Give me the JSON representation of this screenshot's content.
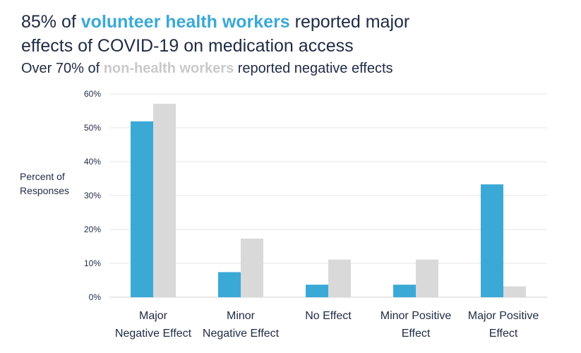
{
  "title": {
    "line1_pre": "85% of ",
    "line1_hl": "volunteer health workers",
    "line1_post": " reported major",
    "line2": "effects of COVID-19 on medication access"
  },
  "subtitle": {
    "pre": "Over 70% of ",
    "hl": "non-health workers",
    "post": " reported negative effects"
  },
  "colors": {
    "health": "#3aa9d6",
    "nonhealth": "#d9d9d9",
    "grid": "#e6e6e6",
    "text": "#1f2a44"
  },
  "chart_data": {
    "type": "bar",
    "ylabel_lines": [
      "Percent of",
      "Responses"
    ],
    "ylim": [
      0,
      60
    ],
    "yticks": [
      0,
      10,
      20,
      30,
      40,
      50,
      60
    ],
    "ytick_labels": [
      "0%",
      "10%",
      "20%",
      "30%",
      "40%",
      "50%",
      "60%"
    ],
    "grid": true,
    "legend": "none",
    "categories": [
      [
        "Major",
        "Negative Effect"
      ],
      [
        "Minor",
        "Negative Effect"
      ],
      [
        "No Effect"
      ],
      [
        "Minor Positive",
        "Effect"
      ],
      [
        "Major Positive",
        "Effect"
      ]
    ],
    "series": [
      {
        "key": "health",
        "values": [
          51.9,
          7.4,
          3.7,
          3.7,
          33.3
        ]
      },
      {
        "key": "nonhealth",
        "values": [
          57.1,
          17.3,
          11.1,
          11.1,
          3.2
        ]
      }
    ]
  }
}
